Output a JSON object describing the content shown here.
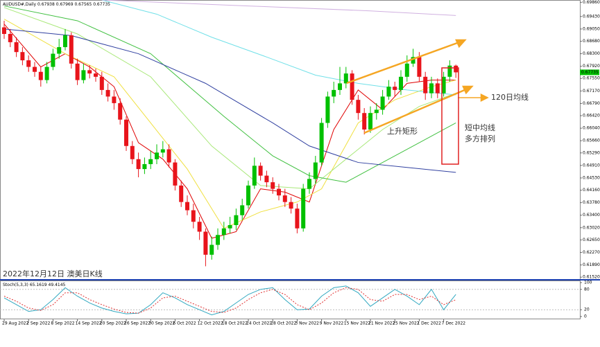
{
  "chart_data": {
    "type": "candlestick",
    "symbol": "AUDUSD#,Daily",
    "annotations": {
      "date_title": "2022年12月12日 澳美日K线",
      "ma120": "120日均线",
      "channel": "上升矩形",
      "ma_line1": "短中均线",
      "ma_line2": "多方排列"
    },
    "categories": [
      "29 Aug 2022",
      null,
      null,
      null,
      "2 Sep 2022",
      null,
      null,
      null,
      "8 Sep 2022",
      null,
      null,
      null,
      "14 Sep 2022",
      null,
      null,
      null,
      "20 Sep 2022",
      null,
      null,
      null,
      "26 Sep 2022",
      null,
      null,
      null,
      "30 Sep 2022",
      null,
      null,
      null,
      "6 Oct 2022",
      null,
      null,
      null,
      "12 Oct 2022",
      null,
      null,
      null,
      "18 Oct 2022",
      null,
      null,
      null,
      "24 Oct 2022",
      null,
      null,
      null,
      "28 Oct 2022",
      null,
      null,
      null,
      "3 Nov 2022",
      null,
      null,
      null,
      "9 Nov 2022",
      null,
      null,
      null,
      "15 Nov 2022",
      null,
      null,
      null,
      "21 Nov 2022",
      null,
      null,
      null,
      "25 Nov 2022",
      null,
      null,
      null,
      "1 Dec 2022",
      null,
      null,
      null,
      "7 Dec 2022",
      null,
      null
    ],
    "candles": {
      "up_color": "#00c000",
      "down_color": "#e8141b",
      "open": [
        0.691,
        0.689,
        0.6865,
        0.6835,
        0.681,
        0.679,
        0.6775,
        0.675,
        0.679,
        0.683,
        0.685,
        0.6886,
        0.68,
        0.675,
        0.678,
        0.677,
        0.676,
        0.672,
        0.67,
        0.668,
        0.663,
        0.655,
        0.651,
        0.648,
        0.6495,
        0.651,
        0.653,
        0.654,
        0.65,
        0.643,
        0.638,
        0.6355,
        0.632,
        0.629,
        0.622,
        0.625,
        0.628,
        0.63,
        0.631,
        0.634,
        0.637,
        0.643,
        0.649,
        0.646,
        0.644,
        0.642,
        0.64,
        0.638,
        0.636,
        0.63,
        0.642,
        0.645,
        0.65,
        0.662,
        0.67,
        0.672,
        0.674,
        0.677,
        0.669,
        0.665,
        0.66,
        0.665,
        0.666,
        0.67,
        0.673,
        0.672,
        0.676,
        0.68,
        0.682,
        0.676,
        0.671,
        0.674,
        0.671,
        0.676,
        0.67938
      ],
      "high": [
        0.693,
        0.6905,
        0.688,
        0.685,
        0.6825,
        0.6805,
        0.679,
        0.6805,
        0.6845,
        0.6875,
        0.6905,
        0.6895,
        0.6815,
        0.68,
        0.6795,
        0.6785,
        0.6775,
        0.674,
        0.672,
        0.6695,
        0.664,
        0.6565,
        0.653,
        0.6515,
        0.6535,
        0.6555,
        0.6565,
        0.6555,
        0.651,
        0.6445,
        0.64,
        0.6375,
        0.6335,
        0.63,
        0.6275,
        0.63,
        0.632,
        0.6335,
        0.636,
        0.639,
        0.6445,
        0.6515,
        0.65,
        0.6475,
        0.6455,
        0.6435,
        0.642,
        0.6395,
        0.6375,
        0.6435,
        0.647,
        0.652,
        0.6635,
        0.6715,
        0.6745,
        0.679,
        0.679,
        0.678,
        0.6705,
        0.6665,
        0.667,
        0.668,
        0.672,
        0.675,
        0.6745,
        0.678,
        0.6825,
        0.6845,
        0.6835,
        0.6775,
        0.676,
        0.6755,
        0.6775,
        0.681,
        0.67969
      ],
      "low": [
        0.6875,
        0.685,
        0.682,
        0.6795,
        0.6775,
        0.676,
        0.673,
        0.674,
        0.678,
        0.6815,
        0.684,
        0.6785,
        0.6735,
        0.674,
        0.6755,
        0.6745,
        0.6705,
        0.6685,
        0.666,
        0.6615,
        0.6535,
        0.6495,
        0.6455,
        0.6465,
        0.648,
        0.6495,
        0.6515,
        0.6485,
        0.6415,
        0.6365,
        0.634,
        0.63,
        0.6265,
        0.6185,
        0.6205,
        0.6235,
        0.6265,
        0.6285,
        0.6295,
        0.6325,
        0.636,
        0.642,
        0.6445,
        0.6425,
        0.6405,
        0.6385,
        0.6365,
        0.6345,
        0.6285,
        0.629,
        0.6405,
        0.6435,
        0.649,
        0.6605,
        0.668,
        0.6705,
        0.6725,
        0.6675,
        0.663,
        0.6585,
        0.659,
        0.663,
        0.6645,
        0.669,
        0.67,
        0.6705,
        0.6745,
        0.679,
        0.6745,
        0.669,
        0.6695,
        0.6695,
        0.67,
        0.6745,
        0.67565
      ],
      "close": [
        0.689,
        0.6865,
        0.6835,
        0.681,
        0.679,
        0.6775,
        0.675,
        0.679,
        0.683,
        0.685,
        0.6886,
        0.68,
        0.675,
        0.678,
        0.677,
        0.676,
        0.672,
        0.67,
        0.668,
        0.663,
        0.655,
        0.651,
        0.648,
        0.6495,
        0.651,
        0.653,
        0.654,
        0.65,
        0.643,
        0.638,
        0.6355,
        0.632,
        0.629,
        0.622,
        0.625,
        0.628,
        0.63,
        0.631,
        0.634,
        0.637,
        0.643,
        0.649,
        0.646,
        0.644,
        0.642,
        0.64,
        0.638,
        0.636,
        0.63,
        0.642,
        0.645,
        0.65,
        0.662,
        0.67,
        0.672,
        0.674,
        0.677,
        0.669,
        0.665,
        0.66,
        0.665,
        0.666,
        0.67,
        0.673,
        0.672,
        0.676,
        0.68,
        0.682,
        0.676,
        0.671,
        0.674,
        0.671,
        0.676,
        0.6794,
        0.67735
      ]
    },
    "lines": [
      {
        "color": "#e00000",
        "x": [
          0,
          6,
          10,
          14,
          18,
          22,
          26,
          30,
          34,
          38,
          42,
          46,
          50,
          54,
          58,
          62,
          66,
          70,
          74
        ],
        "values": [
          0.692,
          0.679,
          0.683,
          0.679,
          0.673,
          0.656,
          0.651,
          0.642,
          0.627,
          0.629,
          0.642,
          0.641,
          0.638,
          0.66,
          0.672,
          0.666,
          0.674,
          0.675,
          0.675
        ]
      },
      {
        "color": "#f0e040",
        "x": [
          0,
          10,
          18,
          24,
          30,
          36,
          42,
          48,
          52,
          58,
          64,
          70,
          74
        ],
        "values": [
          0.6935,
          0.683,
          0.676,
          0.662,
          0.648,
          0.63,
          0.635,
          0.638,
          0.642,
          0.662,
          0.669,
          0.673,
          0.675
        ]
      },
      {
        "color": "#a8e878",
        "x": [
          0,
          12,
          24,
          34,
          42,
          50,
          56,
          62,
          68,
          74
        ],
        "values": [
          0.697,
          0.689,
          0.676,
          0.655,
          0.643,
          0.642,
          0.651,
          0.66,
          0.667,
          0.671
        ]
      },
      {
        "color": "#40c040",
        "x": [
          0,
          12,
          24,
          36,
          44,
          50,
          56,
          62,
          68,
          74
        ],
        "values": [
          0.6975,
          0.693,
          0.683,
          0.664,
          0.652,
          0.646,
          0.644,
          0.65,
          0.656,
          0.662
        ]
      },
      {
        "color": "#3040a0",
        "x": [
          0,
          11,
          22,
          33,
          44,
          50,
          58,
          66,
          74
        ],
        "values": [
          0.6905,
          0.6885,
          0.683,
          0.674,
          0.662,
          0.655,
          0.65,
          0.6485,
          0.647
        ]
      },
      {
        "color": "#70e0e8",
        "x": [
          16,
          25,
          34,
          43,
          51,
          58,
          66,
          74
        ],
        "values": [
          0.6993,
          0.695,
          0.688,
          0.682,
          0.6765,
          0.674,
          0.672,
          0.6705
        ]
      },
      {
        "color": "#d0b0e0",
        "x": [
          16,
          40,
          60,
          74
        ],
        "values": [
          0.6993,
          0.6975,
          0.696,
          0.6946
        ]
      }
    ],
    "ylim": [
      0.6146,
      0.6993
    ],
    "yticks": [
      {
        "value": 0.6986,
        "label": "0.69860"
      },
      {
        "value": 0.6943,
        "label": "0.69430"
      },
      {
        "value": 0.6905,
        "label": "0.69050"
      },
      {
        "value": 0.6868,
        "label": "0.68680"
      },
      {
        "value": 0.683,
        "label": "0.68300"
      },
      {
        "value": 0.6792,
        "label": "0.67920"
      },
      {
        "value": 0.6755,
        "label": "0.67550"
      },
      {
        "value": 0.6717,
        "label": "0.67170"
      },
      {
        "value": 0.6679,
        "label": "0.66790"
      },
      {
        "value": 0.6642,
        "label": "0.66420"
      },
      {
        "value": 0.6604,
        "label": "0.66040"
      },
      {
        "value": 0.6566,
        "label": "0.65660"
      },
      {
        "value": 0.6529,
        "label": "0.65290"
      },
      {
        "value": 0.6491,
        "label": "0.64910"
      },
      {
        "value": 0.6453,
        "label": "0.64530"
      },
      {
        "value": 0.6416,
        "label": "0.64160"
      },
      {
        "value": 0.6378,
        "label": "0.63780"
      },
      {
        "value": 0.634,
        "label": "0.63400"
      },
      {
        "value": 0.6302,
        "label": "0.63020"
      },
      {
        "value": 0.6265,
        "label": "0.62650"
      },
      {
        "value": 0.6227,
        "label": "0.62270"
      },
      {
        "value": 0.6189,
        "label": "0.61890"
      },
      {
        "value": 0.6152,
        "label": "0.61520"
      }
    ],
    "stoch": {
      "title": "Stoch(5,3,3)",
      "ylim": [
        0,
        100
      ],
      "yticks": [
        100,
        80,
        20,
        0
      ],
      "main": {
        "color": "#30a8c0",
        "x": [
          0,
          2,
          4,
          6,
          8,
          10,
          12,
          14,
          16,
          18,
          20,
          22,
          24,
          26,
          28,
          30,
          32,
          34,
          36,
          38,
          40,
          42,
          44,
          46,
          48,
          50,
          52,
          54,
          56,
          58,
          60,
          62,
          64,
          66,
          68,
          70,
          72,
          74
        ],
        "values": [
          55,
          35,
          15,
          20,
          50,
          85,
          60,
          40,
          25,
          15,
          8,
          10,
          35,
          70,
          55,
          35,
          20,
          5,
          15,
          40,
          65,
          80,
          85,
          50,
          20,
          22,
          60,
          85,
          90,
          70,
          30,
          55,
          80,
          60,
          35,
          80,
          20,
          65.1619
        ]
      },
      "signal": {
        "color": "#e03030",
        "x": [
          0,
          2,
          4,
          6,
          8,
          10,
          12,
          14,
          16,
          18,
          20,
          22,
          24,
          26,
          28,
          30,
          32,
          34,
          36,
          38,
          40,
          42,
          44,
          46,
          48,
          50,
          52,
          54,
          56,
          58,
          60,
          62,
          64,
          66,
          68,
          70,
          72,
          74
        ],
        "values": [
          60,
          45,
          25,
          18,
          35,
          70,
          70,
          50,
          35,
          22,
          12,
          10,
          25,
          55,
          60,
          45,
          30,
          15,
          12,
          25,
          50,
          70,
          80,
          65,
          35,
          20,
          40,
          70,
          85,
          80,
          50,
          45,
          65,
          65,
          50,
          60,
          35,
          49.4145
        ]
      }
    }
  }
}
